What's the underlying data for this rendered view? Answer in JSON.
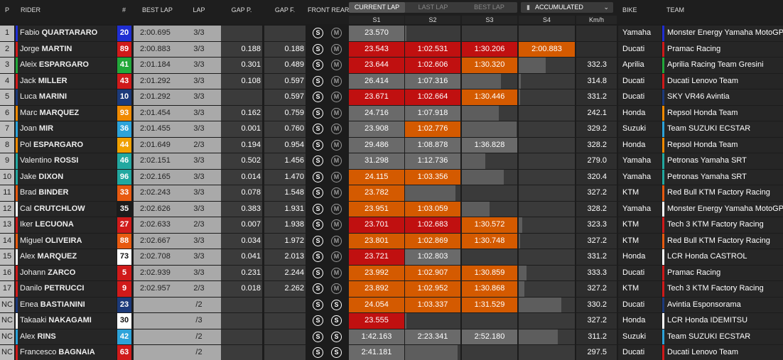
{
  "headers": {
    "pos": "P",
    "rider": "RIDER",
    "num": "#",
    "best_lap": "BEST LAP",
    "lap": "LAP",
    "gap_p": "GAP P.",
    "gap_f": "GAP F.",
    "tyres": "FRONT REAR",
    "bike": "BIKE",
    "team": "TEAM"
  },
  "tabs": [
    "CURRENT LAP",
    "LAST LAP",
    "BEST LAP"
  ],
  "active_tab": 0,
  "view_select": "ACCUMULATED",
  "sector_headers": [
    "S1",
    "S2",
    "S3",
    "S4",
    "Km/h"
  ],
  "colors": {
    "red": "#c01010",
    "orange": "#d45a00",
    "gray": "#6a6a6a"
  },
  "rows": [
    {
      "pos": "1",
      "first": "Fabio",
      "last": "QUARTARARO",
      "num": "20",
      "num_bg": "#1f2ed3",
      "num_fg": "#fff",
      "best": "2:00.695",
      "lap": "3/3",
      "gap_p": "",
      "gap_f": "",
      "front": "S",
      "rear": "M",
      "s1": "23.570",
      "s1c": "gray",
      "s2": "",
      "s2c": "bar",
      "s2f": 0.03,
      "s3": "",
      "s3c": "none",
      "s4": "",
      "s4c": "none",
      "kmh": "",
      "bike": "Yamaha",
      "team": "Monster Energy Yamaha MotoGP",
      "rider_color": "#1f2ed3",
      "team_color": "#1f2ed3"
    },
    {
      "pos": "2",
      "first": "Jorge",
      "last": "MARTIN",
      "num": "89",
      "num_bg": "#d01a1a",
      "num_fg": "#fff",
      "best": "2:00.883",
      "lap": "3/3",
      "gap_p": "0.188",
      "gap_f": "0.188",
      "front": "S",
      "rear": "M",
      "s1": "23.543",
      "s1c": "red",
      "s2": "1:02.531",
      "s2c": "red",
      "s3": "1:30.206",
      "s3c": "red",
      "s4": "2:00.883",
      "s4c": "orange",
      "kmh": "",
      "bike": "Ducati",
      "team": "Pramac Racing",
      "rider_color": "#d01a1a",
      "team_color": "#d01a1a"
    },
    {
      "pos": "3",
      "first": "Aleix",
      "last": "ESPARGARO",
      "num": "41",
      "num_bg": "#22a83a",
      "num_fg": "#fff",
      "best": "2:01.184",
      "lap": "3/3",
      "gap_p": "0.301",
      "gap_f": "0.489",
      "front": "S",
      "rear": "M",
      "s1": "23.644",
      "s1c": "red",
      "s2": "1:02.606",
      "s2c": "red",
      "s3": "1:30.320",
      "s3c": "orange",
      "s4": "",
      "s4c": "bar",
      "s4f": 0.48,
      "kmh": "332.3",
      "bike": "Aprilia",
      "team": "Aprilia Racing Team Gresini",
      "rider_color": "#22a83a",
      "team_color": "#22a83a"
    },
    {
      "pos": "4",
      "first": "Jack",
      "last": "MILLER",
      "num": "43",
      "num_bg": "#d01a1a",
      "num_fg": "#fff",
      "best": "2:01.292",
      "lap": "3/3",
      "gap_p": "0.108",
      "gap_f": "0.597",
      "front": "S",
      "rear": "M",
      "s1": "26.414",
      "s1c": "gray",
      "s2": "1:07.316",
      "s2c": "gray",
      "s3": "",
      "s3c": "bar",
      "s3f": 0.7,
      "s4": "",
      "s4c": "bar",
      "s4f": 0.04,
      "kmh": "314.8",
      "bike": "Ducati",
      "team": "Ducati Lenovo Team",
      "rider_color": "#d01a1a",
      "team_color": "#d01a1a"
    },
    {
      "pos": "5",
      "first": "Luca",
      "last": "MARINI",
      "num": "10",
      "num_bg": "#1c3a7a",
      "num_fg": "#fff",
      "best": "2:01.292",
      "lap": "3/3",
      "gap_p": "",
      "gap_f": "0.597",
      "front": "S",
      "rear": "M",
      "s1": "23.671",
      "s1c": "red",
      "s2": "1:02.664",
      "s2c": "red",
      "s3": "1:30.446",
      "s3c": "orange",
      "s4": "",
      "s4c": "bar",
      "s4f": 0.03,
      "kmh": "331.2",
      "bike": "Ducati",
      "team": "SKY VR46 Avintia",
      "rider_color": "#1c3a7a",
      "team_color": "#1c3a7a"
    },
    {
      "pos": "6",
      "first": "Marc",
      "last": "MARQUEZ",
      "num": "93",
      "num_bg": "#f08a00",
      "num_fg": "#fff",
      "best": "2:01.454",
      "lap": "3/3",
      "gap_p": "0.162",
      "gap_f": "0.759",
      "front": "S",
      "rear": "M",
      "s1": "24.716",
      "s1c": "gray",
      "s2": "1:07.918",
      "s2c": "gray",
      "s3": "",
      "s3c": "bar",
      "s3f": 0.67,
      "s4": "",
      "s4c": "none",
      "kmh": "242.1",
      "bike": "Honda",
      "team": "Repsol Honda Team",
      "rider_color": "#f08a00",
      "team_color": "#f08a00"
    },
    {
      "pos": "7",
      "first": "Joan",
      "last": "MIR",
      "num": "36",
      "num_bg": "#2da3d9",
      "num_fg": "#fff",
      "best": "2:01.455",
      "lap": "3/3",
      "gap_p": "0.001",
      "gap_f": "0.760",
      "front": "S",
      "rear": "M",
      "s1": "23.908",
      "s1c": "gray",
      "s2": "1:02.776",
      "s2c": "orange",
      "s3": "",
      "s3c": "bar",
      "s3f": 0.99,
      "s4": "",
      "s4c": "none",
      "kmh": "329.2",
      "bike": "Suzuki",
      "team": "Team SUZUKI ECSTAR",
      "rider_color": "#2da3d9",
      "team_color": "#2da3d9"
    },
    {
      "pos": "8",
      "first": "Pol",
      "last": "ESPARGARO",
      "num": "44",
      "num_bg": "#f0a000",
      "num_fg": "#fff",
      "best": "2:01.649",
      "lap": "2/3",
      "gap_p": "0.194",
      "gap_f": "0.954",
      "front": "S",
      "rear": "M",
      "s1": "29.486",
      "s1c": "gray",
      "s2": "1:08.878",
      "s2c": "gray",
      "s3": "1:36.828",
      "s3c": "gray",
      "s4": "",
      "s4c": "none",
      "kmh": "328.2",
      "bike": "Honda",
      "team": "Repsol Honda Team",
      "rider_color": "#f08a00",
      "team_color": "#f08a00"
    },
    {
      "pos": "9",
      "first": "Valentino",
      "last": "ROSSI",
      "num": "46",
      "num_bg": "#22a8a0",
      "num_fg": "#fff",
      "best": "2:02.151",
      "lap": "3/3",
      "gap_p": "0.502",
      "gap_f": "1.456",
      "front": "S",
      "rear": "M",
      "s1": "31.298",
      "s1c": "gray",
      "s2": "1:12.736",
      "s2c": "gray",
      "s3": "",
      "s3c": "bar",
      "s3f": 0.42,
      "s4": "",
      "s4c": "none",
      "kmh": "279.0",
      "bike": "Yamaha",
      "team": "Petronas Yamaha SRT",
      "rider_color": "#22a8a0",
      "team_color": "#22a8a0"
    },
    {
      "pos": "10",
      "first": "Jake",
      "last": "DIXON",
      "num": "96",
      "num_bg": "#22a8a0",
      "num_fg": "#fff",
      "best": "2:02.165",
      "lap": "3/3",
      "gap_p": "0.014",
      "gap_f": "1.470",
      "front": "S",
      "rear": "M",
      "s1": "24.115",
      "s1c": "orange",
      "s2": "1:03.356",
      "s2c": "orange",
      "s3": "",
      "s3c": "bar",
      "s3f": 0.76,
      "s4": "",
      "s4c": "none",
      "kmh": "320.4",
      "bike": "Yamaha",
      "team": "Petronas Yamaha SRT",
      "rider_color": "#22a8a0",
      "team_color": "#22a8a0"
    },
    {
      "pos": "11",
      "first": "Brad",
      "last": "BINDER",
      "num": "33",
      "num_bg": "#e85a10",
      "num_fg": "#fff",
      "best": "2:02.243",
      "lap": "3/3",
      "gap_p": "0.078",
      "gap_f": "1.548",
      "front": "S",
      "rear": "M",
      "s1": "23.782",
      "s1c": "orange",
      "s2": "",
      "s2c": "bar",
      "s2f": 0.91,
      "s3": "",
      "s3c": "none",
      "s4": "",
      "s4c": "none",
      "kmh": "327.2",
      "bike": "KTM",
      "team": "Red Bull KTM Factory Racing",
      "rider_color": "#e85a10",
      "team_color": "#e85a10"
    },
    {
      "pos": "12",
      "first": "Cal",
      "last": "CRUTCHLOW",
      "num": "35",
      "num_bg": "#1c1c1c",
      "num_fg": "#fff",
      "best": "2:02.626",
      "lap": "3/3",
      "gap_p": "0.383",
      "gap_f": "1.931",
      "front": "S",
      "rear": "M",
      "s1": "23.951",
      "s1c": "orange",
      "s2": "1:03.059",
      "s2c": "orange",
      "s3": "",
      "s3c": "bar",
      "s3f": 0.5,
      "s4": "",
      "s4c": "none",
      "kmh": "328.2",
      "bike": "Yamaha",
      "team": "Monster Energy Yamaha MotoGP",
      "rider_color": "#ffffff",
      "team_color": "#ffffff"
    },
    {
      "pos": "13",
      "first": "Iker",
      "last": "LECUONA",
      "num": "27",
      "num_bg": "#d01a1a",
      "num_fg": "#fff",
      "best": "2:02.633",
      "lap": "2/3",
      "gap_p": "0.007",
      "gap_f": "1.938",
      "front": "S",
      "rear": "M",
      "s1": "23.701",
      "s1c": "red",
      "s2": "1:02.683",
      "s2c": "red",
      "s3": "1:30.572",
      "s3c": "orange",
      "s4": "",
      "s4c": "bar",
      "s4f": 0.06,
      "kmh": "323.3",
      "bike": "KTM",
      "team": "Tech 3 KTM Factory Racing",
      "rider_color": "#d01a1a",
      "team_color": "#d01a1a"
    },
    {
      "pos": "14",
      "first": "Miguel",
      "last": "OLIVEIRA",
      "num": "88",
      "num_bg": "#e85a10",
      "num_fg": "#fff",
      "best": "2:02.667",
      "lap": "3/3",
      "gap_p": "0.034",
      "gap_f": "1.972",
      "front": "S",
      "rear": "M",
      "s1": "23.801",
      "s1c": "orange",
      "s2": "1:02.869",
      "s2c": "orange",
      "s3": "1:30.748",
      "s3c": "orange",
      "s4": "",
      "s4c": "bar",
      "s4f": 0.03,
      "kmh": "327.2",
      "bike": "KTM",
      "team": "Red Bull KTM Factory Racing",
      "rider_color": "#e85a10",
      "team_color": "#e85a10"
    },
    {
      "pos": "15",
      "first": "Alex",
      "last": "MARQUEZ",
      "num": "73",
      "num_bg": "#ffffff",
      "num_fg": "#111",
      "best": "2:02.708",
      "lap": "3/3",
      "gap_p": "0.041",
      "gap_f": "2.013",
      "front": "S",
      "rear": "M",
      "s1": "23.721",
      "s1c": "red",
      "s2": "1:02.803",
      "s2c": "gray",
      "s3": "",
      "s3c": "none",
      "s4": "",
      "s4c": "none",
      "kmh": "331.2",
      "bike": "Honda",
      "team": "LCR Honda CASTROL",
      "rider_color": "#ffffff",
      "team_color": "#ffffff"
    },
    {
      "pos": "16",
      "first": "Johann",
      "last": "ZARCO",
      "num": "5",
      "num_bg": "#d01a1a",
      "num_fg": "#fff",
      "best": "2:02.939",
      "lap": "3/3",
      "gap_p": "0.231",
      "gap_f": "2.244",
      "front": "S",
      "rear": "M",
      "s1": "23.992",
      "s1c": "orange",
      "s2": "1:02.907",
      "s2c": "orange",
      "s3": "1:30.859",
      "s3c": "orange",
      "s4": "",
      "s4c": "bar",
      "s4f": 0.14,
      "kmh": "333.3",
      "bike": "Ducati",
      "team": "Pramac Racing",
      "rider_color": "#d01a1a",
      "team_color": "#d01a1a"
    },
    {
      "pos": "17",
      "first": "Danilo",
      "last": "PETRUCCI",
      "num": "9",
      "num_bg": "#d01a1a",
      "num_fg": "#fff",
      "best": "2:02.957",
      "lap": "2/3",
      "gap_p": "0.018",
      "gap_f": "2.262",
      "front": "S",
      "rear": "M",
      "s1": "23.892",
      "s1c": "orange",
      "s2": "1:02.952",
      "s2c": "orange",
      "s3": "1:30.868",
      "s3c": "orange",
      "s4": "",
      "s4c": "bar",
      "s4f": 0.1,
      "kmh": "327.2",
      "bike": "KTM",
      "team": "Tech 3 KTM Factory Racing",
      "rider_color": "#d01a1a",
      "team_color": "#d01a1a"
    },
    {
      "pos": "NC",
      "first": "Enea",
      "last": "BASTIANINI",
      "num": "23",
      "num_bg": "#1c3a7a",
      "num_fg": "#fff",
      "best": "",
      "lap": "/2",
      "gap_p": "",
      "gap_f": "",
      "front": "S",
      "rear": "S",
      "s1": "24.054",
      "s1c": "orange",
      "s2": "1:03.337",
      "s2c": "orange",
      "s3": "1:31.529",
      "s3c": "orange",
      "s4": "",
      "s4c": "bar",
      "s4f": 0.76,
      "kmh": "330.2",
      "bike": "Ducati",
      "team": "Avintia Esponsorama",
      "rider_color": "#1c3a7a",
      "team_color": "#1c3a7a"
    },
    {
      "pos": "NC",
      "first": "Takaaki",
      "last": "NAKAGAMI",
      "num": "30",
      "num_bg": "#ffffff",
      "num_fg": "#111",
      "best": "",
      "lap": "/3",
      "gap_p": "",
      "gap_f": "",
      "front": "S",
      "rear": "S",
      "s1": "23.555",
      "s1c": "red",
      "s2": "",
      "s2c": "bar",
      "s2f": 0.03,
      "s3": "",
      "s3c": "none",
      "s4": "",
      "s4c": "none",
      "kmh": "327.2",
      "bike": "Honda",
      "team": "LCR Honda IDEMITSU",
      "rider_color": "#ffffff",
      "team_color": "#ffffff"
    },
    {
      "pos": "NC",
      "first": "Alex",
      "last": "RINS",
      "num": "42",
      "num_bg": "#2da3d9",
      "num_fg": "#fff",
      "best": "",
      "lap": "/2",
      "gap_p": "",
      "gap_f": "",
      "front": "S",
      "rear": "S",
      "s1": "1:42.163",
      "s1c": "gray",
      "s2": "2:23.341",
      "s2c": "gray",
      "s3": "2:52.180",
      "s3c": "gray",
      "s4": "",
      "s4c": "bar",
      "s4f": 0.7,
      "kmh": "311.2",
      "bike": "Suzuki",
      "team": "Team SUZUKI ECSTAR",
      "rider_color": "#2da3d9",
      "team_color": "#2da3d9"
    },
    {
      "pos": "NC",
      "first": "Francesco",
      "last": "BAGNAIA",
      "num": "63",
      "num_bg": "#d01a1a",
      "num_fg": "#fff",
      "best": "",
      "lap": "/2",
      "gap_p": "",
      "gap_f": "",
      "front": "S",
      "rear": "S",
      "s1": "2:41.181",
      "s1c": "gray",
      "s2": "",
      "s2c": "bar",
      "s2f": 0.95,
      "s3": "",
      "s3c": "none",
      "s4": "",
      "s4c": "none",
      "kmh": "297.5",
      "bike": "Ducati",
      "team": "Ducati Lenovo Team",
      "rider_color": "#d01a1a",
      "team_color": "#d01a1a"
    }
  ]
}
